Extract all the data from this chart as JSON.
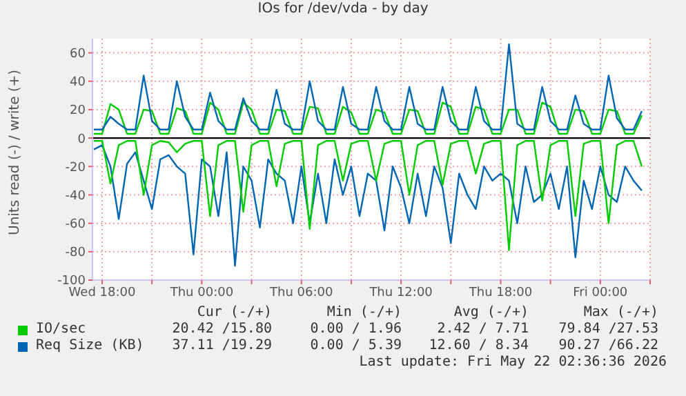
{
  "chart_data": {
    "type": "line",
    "title": "IOs for /dev/vda - by day",
    "ylabel": "Units read (-) / write (+)",
    "x": [
      "2026-05-20T17:30",
      "2026-05-20T18:00",
      "2026-05-20T18:30",
      "2026-05-20T19:00",
      "2026-05-20T19:30",
      "2026-05-20T20:00",
      "2026-05-20T20:30",
      "2026-05-20T21:00",
      "2026-05-20T21:30",
      "2026-05-20T22:00",
      "2026-05-20T22:30",
      "2026-05-20T23:00",
      "2026-05-20T23:30",
      "2026-05-21T00:00",
      "2026-05-21T00:30",
      "2026-05-21T01:00",
      "2026-05-21T01:30",
      "2026-05-21T02:00",
      "2026-05-21T02:30",
      "2026-05-21T03:00",
      "2026-05-21T03:30",
      "2026-05-21T04:00",
      "2026-05-21T04:30",
      "2026-05-21T05:00",
      "2026-05-21T05:30",
      "2026-05-21T06:00",
      "2026-05-21T06:30",
      "2026-05-21T07:00",
      "2026-05-21T07:30",
      "2026-05-21T08:00",
      "2026-05-21T08:30",
      "2026-05-21T09:00",
      "2026-05-21T09:30",
      "2026-05-21T10:00",
      "2026-05-21T10:30",
      "2026-05-21T11:00",
      "2026-05-21T11:30",
      "2026-05-21T12:00",
      "2026-05-21T12:30",
      "2026-05-21T13:00",
      "2026-05-21T13:30",
      "2026-05-21T14:00",
      "2026-05-21T14:30",
      "2026-05-21T15:00",
      "2026-05-21T15:30",
      "2026-05-21T16:00",
      "2026-05-21T16:30",
      "2026-05-21T17:00",
      "2026-05-21T17:30",
      "2026-05-21T18:00",
      "2026-05-21T18:30",
      "2026-05-21T19:00",
      "2026-05-21T19:30",
      "2026-05-21T20:00",
      "2026-05-21T20:30",
      "2026-05-21T21:00",
      "2026-05-21T21:30",
      "2026-05-21T22:00",
      "2026-05-21T22:30",
      "2026-05-21T23:00",
      "2026-05-21T23:30",
      "2026-05-22T00:00",
      "2026-05-22T00:30",
      "2026-05-22T01:00",
      "2026-05-22T01:30",
      "2026-05-22T02:00",
      "2026-05-22T02:30"
    ],
    "series": [
      {
        "color": "#0066b3",
        "values": [
          -8,
          -5,
          -20,
          -57,
          -18,
          -10,
          -30,
          -50,
          -15,
          -12,
          -20,
          -25,
          -82,
          -15,
          -20,
          -55,
          -10,
          -90,
          -20,
          -30,
          -63,
          -15,
          -25,
          -30,
          -60,
          -20,
          -60,
          -25,
          -60,
          -15,
          -40,
          -20,
          -55,
          -25,
          -30,
          -65,
          -20,
          -35,
          -60,
          -25,
          -55,
          -20,
          -35,
          -74,
          -25,
          -40,
          -50,
          -20,
          -30,
          -25,
          -30,
          -60,
          -20,
          -45,
          -40,
          -25,
          -50,
          -20,
          -84,
          -30,
          -50,
          -20,
          -40,
          -45,
          -20,
          -30,
          -37
        ]
      },
      {
        "color": "#00cc00",
        "values": [
          -2,
          -2,
          -32,
          -5,
          -2,
          -2,
          -40,
          -5,
          -2,
          -3,
          -10,
          -4,
          -2,
          -2,
          -55,
          -5,
          -2,
          -2,
          -52,
          -5,
          -2,
          -2,
          -34,
          -4,
          -2,
          -2,
          -64,
          -5,
          -2,
          -2,
          -30,
          -4,
          -2,
          -2,
          -30,
          -4,
          -2,
          -2,
          -40,
          -5,
          -2,
          -2,
          -33,
          -4,
          -2,
          -2,
          -25,
          -4,
          -2,
          -2,
          -79,
          -5,
          -2,
          -2,
          -44,
          -5,
          -2,
          -2,
          -55,
          -4,
          -2,
          -2,
          -60,
          -5,
          -2,
          -2,
          -20
        ]
      },
      {
        "name": "IO/sec",
        "color": "#00cc00",
        "values": [
          3,
          3,
          24,
          20,
          3,
          3,
          20,
          19,
          3,
          3,
          21,
          19,
          3,
          3,
          25,
          20,
          3,
          3,
          25,
          20,
          3,
          3,
          20,
          19,
          3,
          3,
          22,
          21,
          3,
          3,
          22,
          18,
          3,
          3,
          20,
          18,
          3,
          3,
          20,
          19,
          3,
          3,
          25,
          22,
          3,
          3,
          22,
          20,
          3,
          3,
          20,
          20,
          3,
          3,
          25,
          22,
          3,
          3,
          20,
          19,
          3,
          3,
          20,
          19,
          3,
          3,
          16
        ]
      },
      {
        "name": "Req Size (KB)",
        "color": "#0066b3",
        "values": [
          6,
          6,
          15,
          10,
          6,
          6,
          44,
          12,
          6,
          6,
          40,
          15,
          6,
          6,
          32,
          12,
          6,
          6,
          28,
          12,
          6,
          6,
          34,
          10,
          6,
          6,
          40,
          12,
          6,
          6,
          36,
          10,
          6,
          6,
          36,
          12,
          6,
          6,
          36,
          10,
          6,
          6,
          36,
          12,
          6,
          6,
          36,
          12,
          6,
          6,
          66,
          10,
          6,
          6,
          36,
          12,
          6,
          6,
          30,
          10,
          6,
          6,
          44,
          14,
          6,
          6,
          19
        ]
      }
    ],
    "xlim": [
      "2026-05-20T17:25",
      "2026-05-22T03:00"
    ],
    "xticks": [
      {
        "value": "2026-05-20T18:00",
        "label": "Wed 18:00"
      },
      {
        "value": "2026-05-20T21:00",
        "label": null
      },
      {
        "value": "2026-05-21T00:00",
        "label": "Thu 00:00"
      },
      {
        "value": "2026-05-21T03:00",
        "label": null
      },
      {
        "value": "2026-05-21T06:00",
        "label": "Thu 06:00"
      },
      {
        "value": "2026-05-21T09:00",
        "label": null
      },
      {
        "value": "2026-05-21T12:00",
        "label": "Thu 12:00"
      },
      {
        "value": "2026-05-21T15:00",
        "label": null
      },
      {
        "value": "2026-05-21T18:00",
        "label": "Thu 18:00"
      },
      {
        "value": "2026-05-21T21:00",
        "label": null
      },
      {
        "value": "2026-05-22T00:00",
        "label": "Fri 00:00"
      },
      {
        "value": "2026-05-22T03:00",
        "label": null
      }
    ],
    "ylim": [
      -100,
      70
    ],
    "yticks": [
      -100,
      -80,
      -60,
      -40,
      -20,
      0,
      20,
      40,
      60
    ],
    "ref_lines": [
      {
        "axis": "y",
        "value": 0,
        "color": "#000000"
      }
    ],
    "grid": true,
    "legend": "bottom",
    "annotations": [
      "Cur (-/+)",
      "Min (-/+)",
      "Avg (-/+)",
      "Max (-/+)",
      "20.42 /15.80",
      "0.00 / 1.96",
      "2.42 / 7.71",
      "79.84 /27.53",
      "37.11 /19.29",
      "0.00 / 5.39",
      "12.60 / 8.34",
      "90.27 /66.22",
      "Last update: Fri May 22 02:36:36 2026"
    ]
  }
}
